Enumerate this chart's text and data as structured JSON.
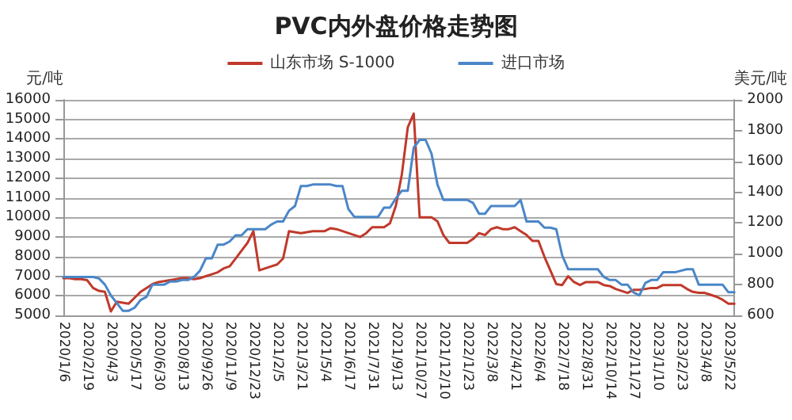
{
  "chart_data": {
    "type": "line",
    "title": "PVC内外盘价格走势图",
    "ylabel": "元/吨",
    "y2label": "美元/吨",
    "categories": [
      "2020/1/6",
      null,
      null,
      null,
      "2020/2/19",
      null,
      null,
      null,
      "2020/4/3",
      null,
      null,
      null,
      "2020/5/17",
      null,
      null,
      null,
      "2020/6/30",
      null,
      null,
      null,
      "2020/8/13",
      null,
      null,
      null,
      "2020/9/26",
      null,
      null,
      null,
      "2020/11/9",
      null,
      null,
      null,
      "2020/12/23",
      null,
      null,
      null,
      "2021/2/5",
      null,
      null,
      null,
      "2021/3/21",
      null,
      null,
      null,
      "2021/5/4",
      null,
      null,
      null,
      "2021/6/17",
      null,
      null,
      null,
      "2021/7/31",
      null,
      null,
      null,
      "2021/9/13",
      null,
      null,
      null,
      "2021/10/27",
      null,
      null,
      null,
      "2021/12/10",
      null,
      null,
      null,
      "2022/1/23",
      null,
      null,
      null,
      "2022/3/8",
      null,
      null,
      null,
      "2022/4/21",
      null,
      null,
      null,
      "2022/6/4",
      null,
      null,
      null,
      "2022/7/18",
      null,
      null,
      null,
      "2022/8/31",
      null,
      null,
      null,
      "2022/10/14",
      null,
      null,
      null,
      "2022/11/27",
      null,
      null,
      null,
      "2023/1/10",
      null,
      null,
      null,
      "2023/2/23",
      null,
      null,
      null,
      "2023/4/8",
      null,
      null,
      null,
      "2023/5/22",
      null
    ],
    "series": [
      {
        "name": "山东市场 S-1000",
        "color": "#c0392b",
        "values": [
          6900,
          6900,
          6850,
          6850,
          6800,
          6400,
          6250,
          6200,
          5200,
          5700,
          5650,
          5600,
          5900,
          6200,
          6400,
          6600,
          6700,
          6750,
          6800,
          6850,
          6900,
          6900,
          6850,
          6900,
          7000,
          7100,
          7200,
          7400,
          7500,
          7900,
          8300,
          8700,
          9300,
          7300,
          7400,
          7500,
          7600,
          7900,
          9300,
          9250,
          9200,
          9250,
          9300,
          9300,
          9300,
          9450,
          9400,
          9300,
          9200,
          9100,
          9000,
          9200,
          9500,
          9500,
          9500,
          9700,
          10600,
          12200,
          14600,
          15300,
          10000,
          10000,
          10000,
          9800,
          9100,
          8700,
          8700,
          8700,
          8700,
          8900,
          9200,
          9100,
          9400,
          9500,
          9400,
          9400,
          9500,
          9300,
          9100,
          8800,
          8800,
          8000,
          7300,
          6600,
          6550,
          7000,
          6700,
          6550,
          6700,
          6700,
          6700,
          6550,
          6500,
          6350,
          6250,
          6150,
          6300,
          6300,
          6350,
          6400,
          6400,
          6550,
          6550,
          6550,
          6550,
          6350,
          6200,
          6150,
          6150,
          6050,
          5950,
          5800,
          5600,
          5600
        ]
      },
      {
        "name": "进口市场",
        "color": "#4a86c8",
        "axis": "y2",
        "values": [
          850,
          850,
          850,
          850,
          850,
          850,
          840,
          800,
          730,
          680,
          630,
          630,
          650,
          700,
          720,
          800,
          800,
          800,
          820,
          820,
          830,
          830,
          850,
          890,
          970,
          970,
          1060,
          1060,
          1080,
          1120,
          1120,
          1160,
          1160,
          1160,
          1160,
          1190,
          1210,
          1210,
          1280,
          1310,
          1440,
          1440,
          1450,
          1450,
          1450,
          1450,
          1440,
          1440,
          1290,
          1240,
          1240,
          1240,
          1240,
          1240,
          1300,
          1300,
          1360,
          1410,
          1410,
          1690,
          1740,
          1740,
          1650,
          1450,
          1350,
          1350,
          1350,
          1350,
          1350,
          1330,
          1260,
          1260,
          1310,
          1310,
          1310,
          1310,
          1310,
          1350,
          1210,
          1210,
          1210,
          1170,
          1170,
          1160,
          990,
          900,
          900,
          900,
          900,
          900,
          900,
          850,
          830,
          830,
          800,
          800,
          750,
          730,
          810,
          830,
          830,
          880,
          880,
          880,
          890,
          900,
          900,
          800,
          800,
          800,
          800,
          800,
          750,
          750
        ]
      }
    ],
    "ylim": [
      5000,
      16000
    ],
    "yticks": [
      5000,
      6000,
      7000,
      8000,
      9000,
      10000,
      11000,
      12000,
      13000,
      14000,
      15000,
      16000
    ],
    "y2lim": [
      600,
      2000
    ],
    "y2ticks": [
      600,
      800,
      1000,
      1200,
      1400,
      1600,
      1800,
      2000
    ],
    "grid": "y",
    "legend": "top",
    "marker": "none",
    "line_style": "solid"
  }
}
